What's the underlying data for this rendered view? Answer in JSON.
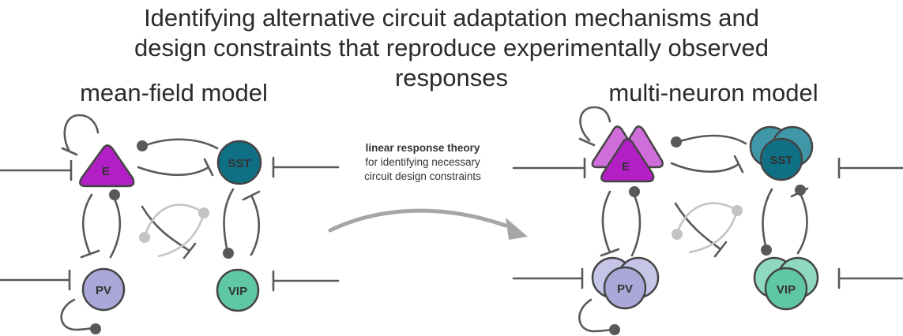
{
  "title": {
    "line1": "Identifying alternative circuit adaptation mechanisms and",
    "line2": "design constraints that reproduce experimentally observed",
    "line3": "responses"
  },
  "left_model": {
    "heading": "mean-field model",
    "nodes": {
      "e": "E",
      "sst": "SST",
      "pv": "PV",
      "vip": "VIP"
    }
  },
  "right_model": {
    "heading": "multi-neuron model",
    "nodes": {
      "e": "E",
      "sst": "SST",
      "pv": "PV",
      "vip": "VIP"
    }
  },
  "arrow_caption": {
    "bold": "linear response theory",
    "line2": "for identifying necessary",
    "line3": "circuit design constraints"
  },
  "colors": {
    "e": "#b21fc4",
    "e_light": "#cf6ddb",
    "sst": "#0f6f85",
    "sst_light": "#3f97a8",
    "pv": "#a9a8d8",
    "pv_light": "#c6c5e8",
    "vip": "#5fc7a4",
    "vip_light": "#8fd9bf",
    "wire": "#595959",
    "wire_light": "#c4c4c4",
    "arrow": "#a6a6a6"
  }
}
